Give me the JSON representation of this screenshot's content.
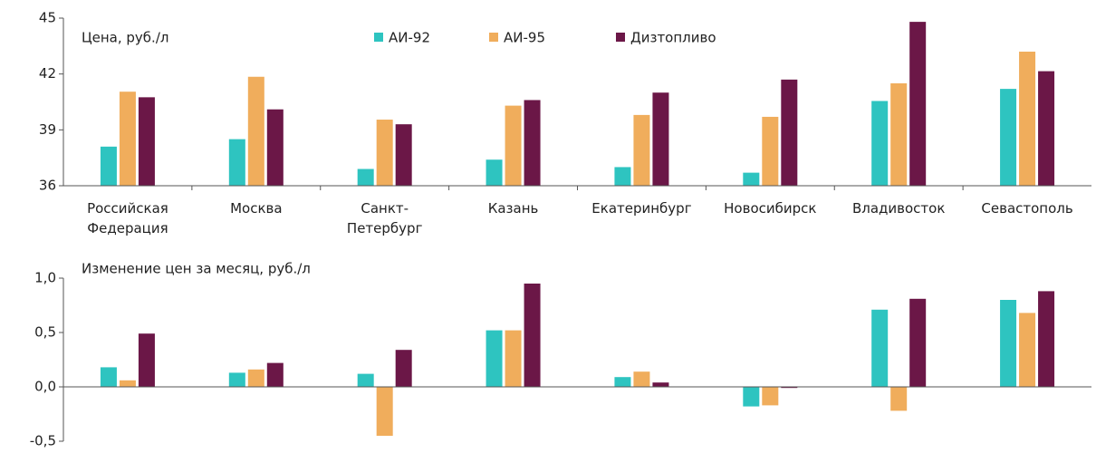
{
  "chart_data": [
    {
      "type": "bar",
      "y_label": "Цена, руб./л",
      "categories": [
        "Российская\nФедерация",
        "Москва",
        "Санкт-\nПетербург",
        "Казань",
        "Екатеринбург",
        "Новосибирск",
        "Владивосток",
        "Севастополь"
      ],
      "series": [
        {
          "name": "АИ-92",
          "color": "#2ec4c0",
          "values": [
            38.1,
            38.5,
            36.9,
            37.4,
            37.0,
            36.7,
            40.55,
            41.2
          ]
        },
        {
          "name": "АИ-95",
          "color": "#f0ad5c",
          "values": [
            41.05,
            41.85,
            39.55,
            40.3,
            39.8,
            39.7,
            41.5,
            43.2
          ]
        },
        {
          "name": "Дизтопливо",
          "color": "#6b1747",
          "values": [
            40.75,
            40.1,
            39.3,
            40.6,
            41.0,
            41.7,
            44.8,
            42.15
          ]
        }
      ],
      "ylim": [
        36,
        45
      ],
      "yticks": [
        36,
        39,
        42,
        45
      ]
    },
    {
      "type": "bar",
      "y_label": "Изменение цен за месяц, руб./л",
      "series": [
        {
          "color": "#2ec4c0",
          "values": [
            0.18,
            0.13,
            0.12,
            0.52,
            0.09,
            -0.18,
            0.71,
            0.8
          ]
        },
        {
          "color": "#f0ad5c",
          "values": [
            0.06,
            0.16,
            -0.45,
            0.52,
            0.14,
            -0.17,
            -0.22,
            0.68
          ]
        },
        {
          "color": "#6b1747",
          "values": [
            0.49,
            0.22,
            0.34,
            0.95,
            0.04,
            -0.01,
            0.81,
            0.88
          ]
        }
      ],
      "ylim": [
        -0.5,
        1.0
      ],
      "yticks": [
        {
          "value": -0.5,
          "label": "-0,5"
        },
        {
          "value": 0,
          "label": "0,0"
        },
        {
          "value": 0.5,
          "label": "0,5"
        },
        {
          "value": 1.0,
          "label": "1,0"
        }
      ]
    }
  ]
}
